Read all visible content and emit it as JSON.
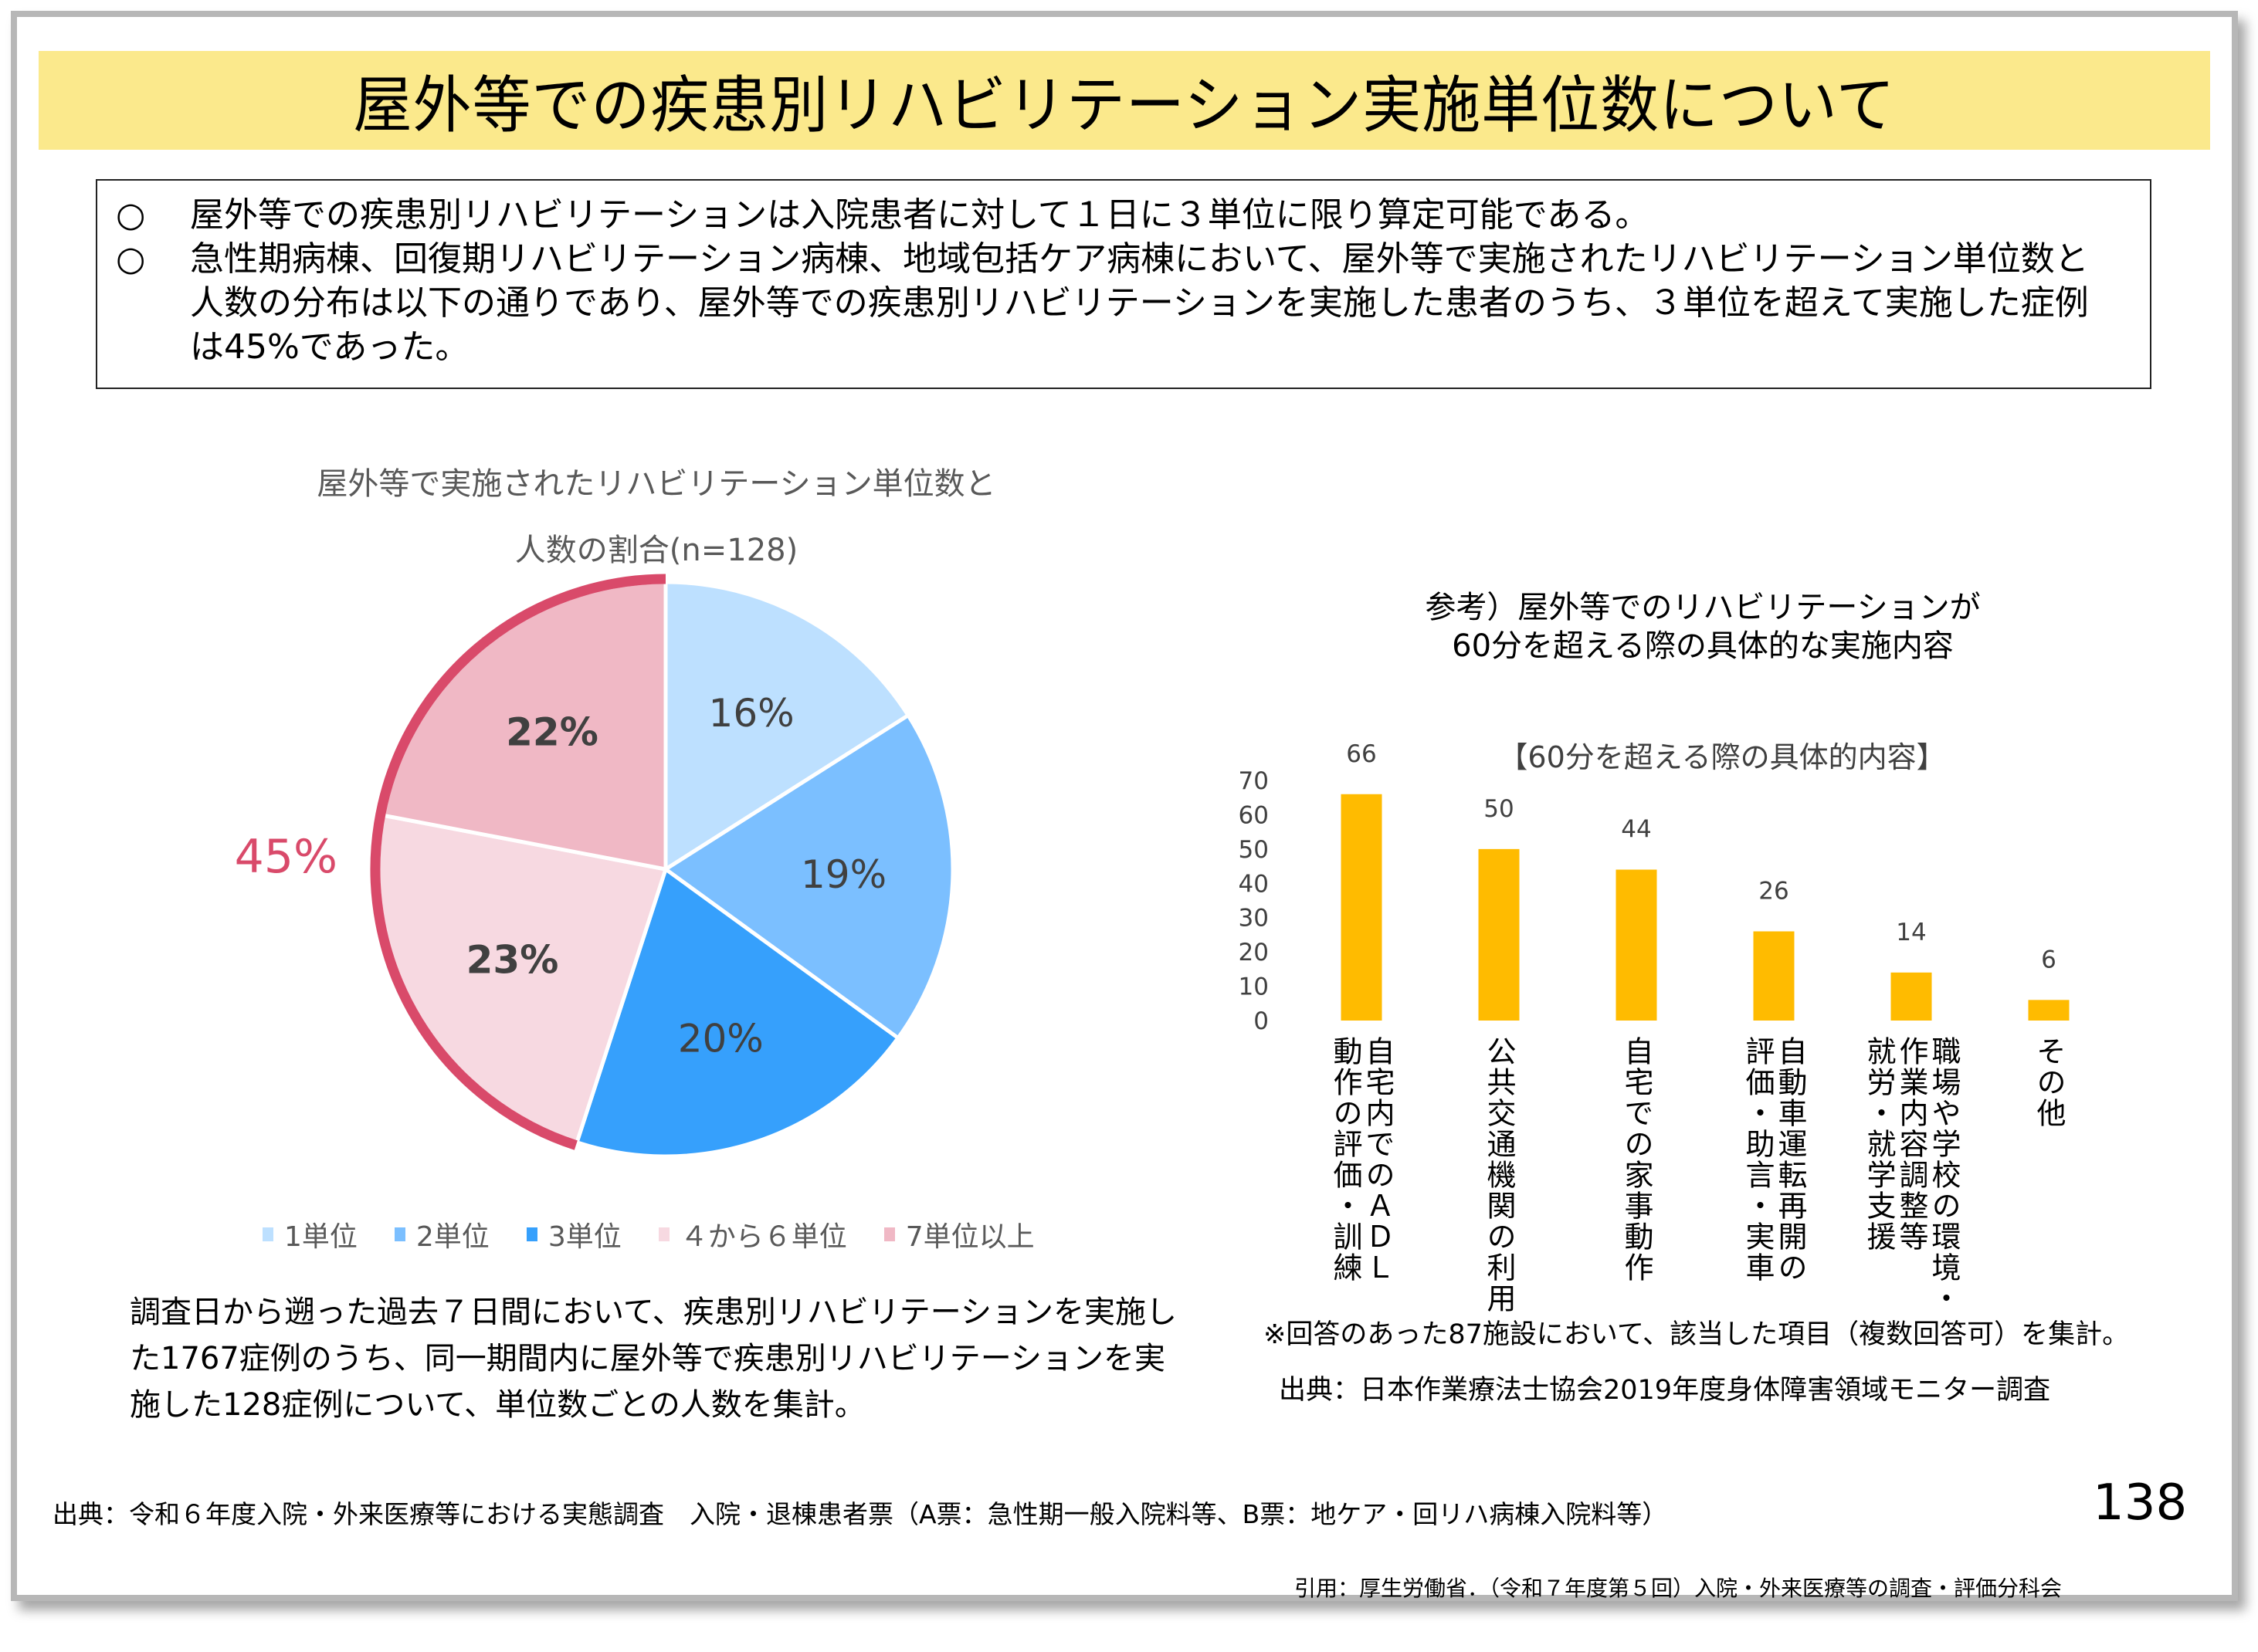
{
  "title": "屋外等での疾患別リハビリテーション実施単位数について",
  "summary": {
    "bullet": "○",
    "items": [
      "屋外等での疾患別リハビリテーションは入院患者に対して１日に３単位に限り算定可能である。",
      "急性期病棟、回復期リハビリテーション病棟、地域包括ケア病棟において、屋外等で実施されたリハビリテーション単位数と人数の分布は以下の通りであり、屋外等での疾患別リハビリテーションを実施した患者のうち、３単位を超えて実施した症例は45%であった。"
    ]
  },
  "pie_note": "調査日から遡った過去７日間において、疾患別リハビリテーションを実施した1767症例のうち、同一期間内に屋外等で疾患別リハビリテーションを実施した128症例について、単位数ごとの人数を集計。",
  "bar_notes": {
    "note": "※回答のあった87施設において、該当した項目（複数回答可）を集計。",
    "source": "出典：日本作業療法士協会2019年度身体障害領域モニター調査"
  },
  "footer": {
    "source": "出典：令和６年度入院・外来医療等における実態調査　入院・退棟患者票（A票：急性期一般入院料等、B票：地ケア・回リハ病棟入院料等）",
    "page_number": "138",
    "citation": "引用：厚生労働省．（令和７年度第５回）入院・外来医療等の調査・評価分科会"
  },
  "colors": {
    "title_band": "#fbe98c",
    "highlight": "#d94a6a",
    "bar": "#ffbb00"
  },
  "chart_data": [
    {
      "type": "pie",
      "title": "屋外等で実施されたリハビリテーション単位数と",
      "subtitle": "人数の割合(n=128)",
      "categories": [
        "1単位",
        "2単位",
        "3単位",
        "４から６単位",
        "7単位以上"
      ],
      "values": [
        16,
        19,
        20,
        23,
        22
      ],
      "labels": [
        "16%",
        "19%",
        "20%",
        "23%",
        "22%"
      ],
      "colors": [
        "#bde0ff",
        "#7bbfff",
        "#36a0fc",
        "#f7d9e1",
        "#f0b8c5"
      ],
      "bold_labels": [
        false,
        false,
        false,
        true,
        true
      ],
      "annotation": {
        "text": "45%",
        "covers": [
          "４から６単位",
          "7単位以上"
        ]
      },
      "legend": "bottom"
    },
    {
      "type": "bar",
      "title": "参考）屋外等でのリハビリテーションが\n60分を超える際の具体的な実施内容",
      "subtitle": "【60分を超える際の具体的内容】",
      "categories": [
        "自宅内でのＡＤＬ\n動作の評価・訓練",
        "公共交通機関の利用",
        "自宅での家事動作",
        "自動車運転再開の\n評価・助言・実車",
        "職場や学校の環境・\n作業内容調整等\n就労・就学支援",
        "その他"
      ],
      "values": [
        66,
        50,
        44,
        26,
        14,
        6
      ],
      "labels": [
        "66",
        "50",
        "44",
        "26",
        "14",
        "6"
      ],
      "yticks": [
        "0",
        "10",
        "20",
        "30",
        "40",
        "50",
        "60",
        "70"
      ],
      "ylim": [
        0,
        70
      ],
      "xlabel": "",
      "ylabel": "",
      "grid": false,
      "legend": "none"
    }
  ]
}
